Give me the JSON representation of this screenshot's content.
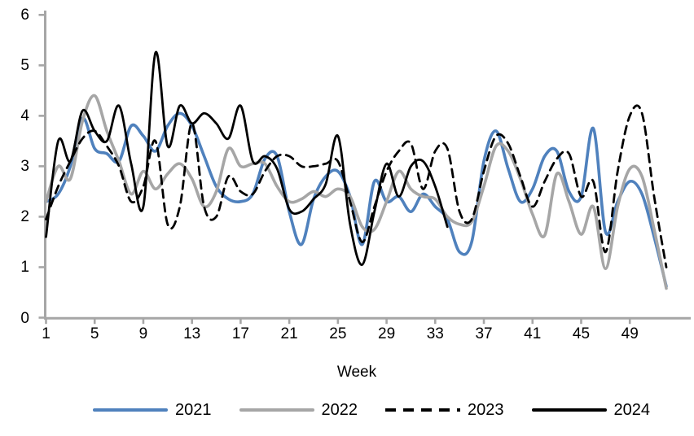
{
  "chart_data": {
    "type": "line",
    "title": "",
    "xlabel": "Week",
    "ylabel": "",
    "xlim": [
      1,
      52
    ],
    "ylim": [
      0,
      6
    ],
    "grid": false,
    "legend_position": "bottom",
    "axis_color": "#A6A6A6",
    "text_color": "#000000",
    "x_ticks": [
      1,
      5,
      9,
      13,
      17,
      21,
      25,
      29,
      33,
      37,
      41,
      45,
      49
    ],
    "y_ticks": [
      0,
      1,
      2,
      3,
      4,
      5,
      6
    ],
    "x_unit": "week_number",
    "series": [
      {
        "name": "2021",
        "color": "#4F81BD",
        "style": "solid",
        "line_width": 3.6,
        "start_week": 1,
        "values": [
          2.3,
          2.45,
          3.0,
          3.95,
          3.35,
          3.25,
          3.1,
          3.8,
          3.6,
          3.3,
          3.8,
          4.05,
          3.8,
          3.2,
          2.6,
          2.35,
          2.3,
          2.45,
          3.15,
          3.2,
          2.1,
          1.45,
          2.35,
          2.8,
          2.9,
          2.4,
          1.45,
          2.7,
          2.3,
          2.4,
          2.1,
          2.45,
          2.2,
          1.95,
          1.3,
          1.5,
          3.1,
          3.7,
          2.95,
          2.3,
          2.55,
          3.2,
          3.3,
          2.5,
          2.4,
          3.75,
          1.7,
          2.3,
          2.7,
          2.45,
          1.6,
          0.62
        ]
      },
      {
        "name": "2022",
        "color": "#A6A6A6",
        "style": "solid",
        "line_width": 3.6,
        "start_week": 1,
        "values": [
          2.3,
          3.0,
          2.75,
          3.9,
          4.4,
          3.7,
          3.1,
          2.45,
          2.9,
          2.55,
          2.85,
          3.05,
          2.75,
          2.2,
          2.5,
          3.35,
          3.0,
          3.05,
          3.05,
          2.6,
          2.3,
          2.35,
          2.5,
          2.4,
          2.55,
          2.4,
          1.8,
          1.75,
          2.3,
          2.9,
          2.55,
          2.4,
          2.35,
          2.0,
          1.85,
          1.9,
          2.6,
          3.4,
          3.3,
          2.75,
          2.05,
          1.63,
          2.85,
          2.3,
          1.65,
          2.2,
          0.97,
          2.2,
          2.95,
          2.8,
          1.75,
          0.58
        ]
      },
      {
        "name": "2023",
        "color": "#000000",
        "style": "dashed",
        "line_width": 2.8,
        "start_week": 1,
        "values": [
          1.95,
          2.6,
          3.1,
          3.55,
          3.7,
          3.4,
          3.0,
          2.3,
          2.6,
          3.5,
          1.85,
          2.2,
          3.85,
          2.2,
          2.0,
          2.8,
          2.5,
          2.45,
          2.9,
          3.2,
          3.2,
          3.0,
          3.0,
          3.05,
          3.1,
          2.3,
          1.5,
          2.2,
          2.9,
          3.3,
          3.45,
          2.55,
          3.3,
          3.35,
          2.1,
          1.95,
          2.9,
          3.6,
          3.45,
          2.8,
          2.2,
          2.7,
          3.15,
          3.25,
          2.4,
          2.7,
          1.3,
          2.9,
          4.0,
          4.05,
          2.4,
          1.0
        ]
      },
      {
        "name": "2024",
        "color": "#000000",
        "style": "solid",
        "line_width": 2.8,
        "start_week": 1,
        "values": [
          1.6,
          3.5,
          3.1,
          4.1,
          3.7,
          3.5,
          4.2,
          3.05,
          2.2,
          5.25,
          3.4,
          4.2,
          3.85,
          4.05,
          3.85,
          3.55,
          4.2,
          3.1,
          3.2,
          2.95,
          2.15,
          2.1,
          2.35,
          2.65,
          3.6,
          1.85,
          1.05,
          2.1,
          3.05,
          2.4,
          3.0,
          3.1,
          2.6,
          1.8
        ]
      }
    ]
  },
  "legend": {
    "items": [
      {
        "label": "2021"
      },
      {
        "label": "2022"
      },
      {
        "label": "2023"
      },
      {
        "label": "2024"
      }
    ]
  }
}
